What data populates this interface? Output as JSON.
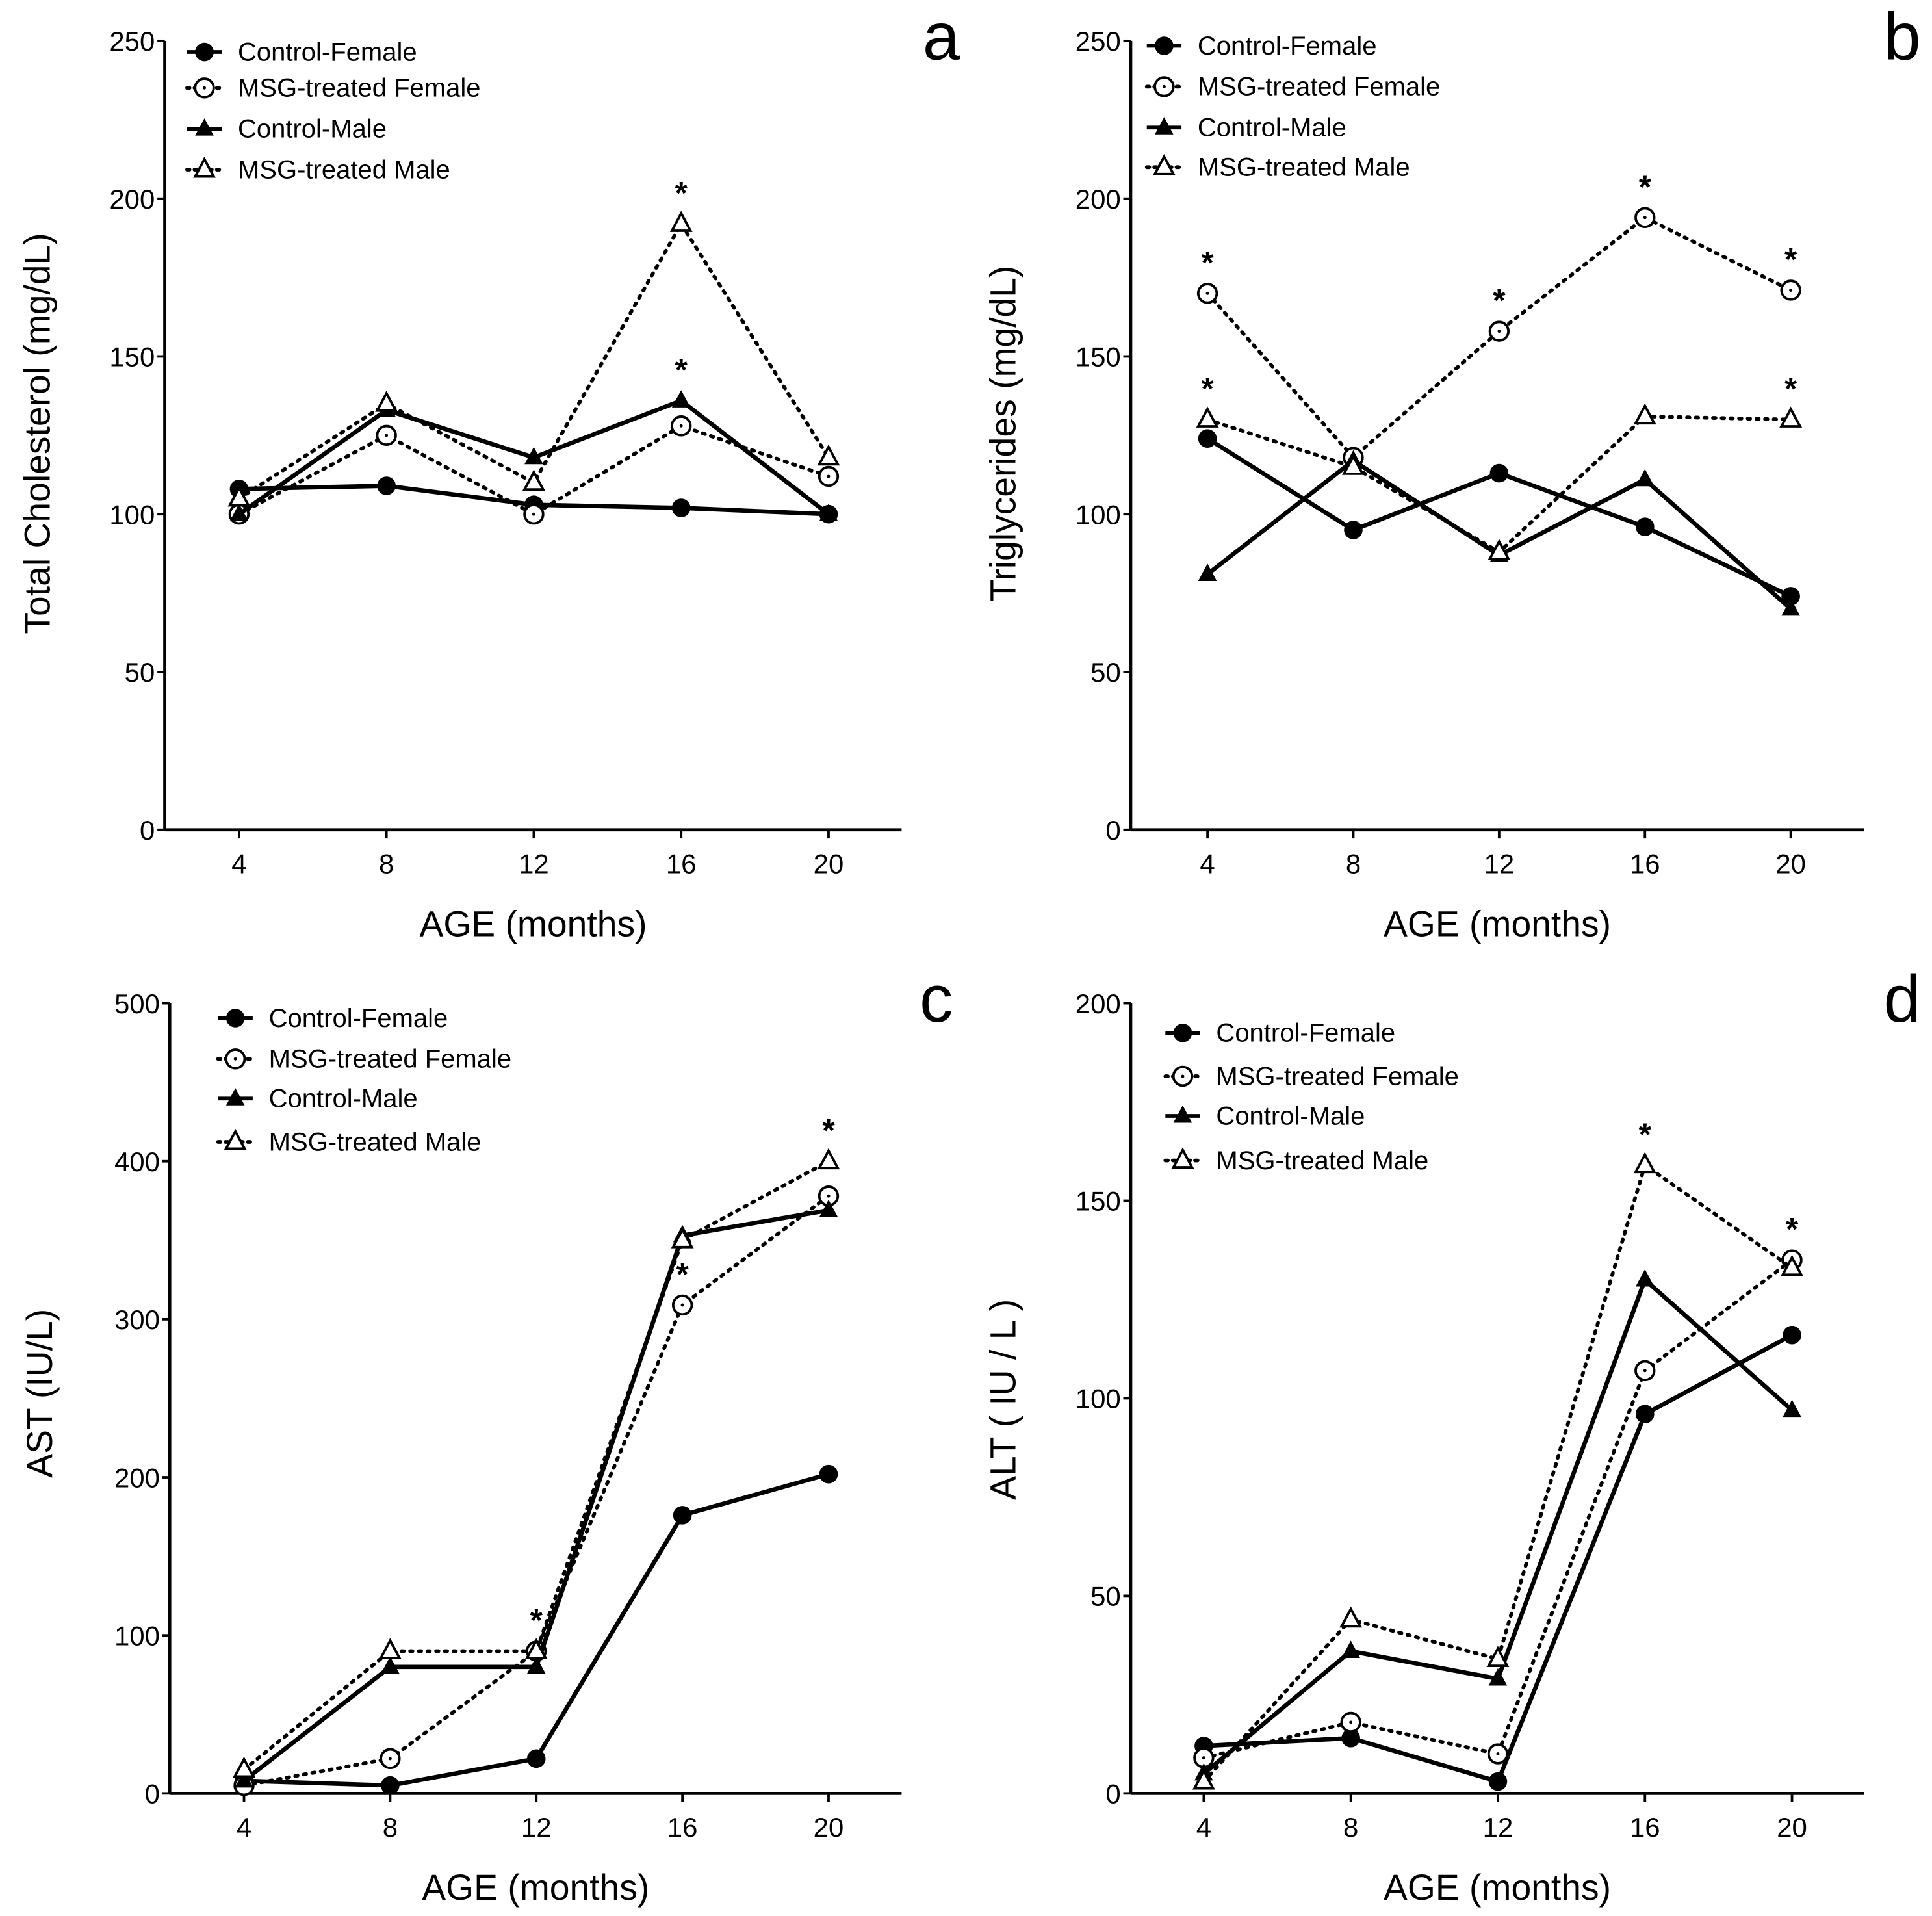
{
  "chart_data": [
    {
      "type": "line",
      "panel_label": "a",
      "xlabel": "AGE (months)",
      "ylabel": "Total Cholesterol (mg/dL)",
      "x": [
        4,
        8,
        12,
        16,
        20
      ],
      "ylim": [
        0,
        250
      ],
      "yticks": [
        0,
        50,
        100,
        150,
        200,
        250
      ],
      "legend_position": "top-left",
      "series": [
        {
          "name": "Control-Female",
          "values": [
            108,
            109,
            103,
            102,
            100
          ]
        },
        {
          "name": "MSG-treated Female",
          "values": [
            100,
            125,
            100,
            128,
            112
          ]
        },
        {
          "name": "Control-Male",
          "values": [
            100,
            133,
            118,
            136,
            100
          ]
        },
        {
          "name": "MSG-treated Male",
          "values": [
            105,
            135,
            110,
            192,
            118
          ]
        }
      ],
      "annotations": [
        {
          "text": "*",
          "series": 3,
          "x": 16
        },
        {
          "text": "*",
          "series": 2,
          "x": 16
        }
      ]
    },
    {
      "type": "line",
      "panel_label": "b",
      "xlabel": "AGE (months)",
      "ylabel": "Triglycerides (mg/dL)",
      "x": [
        4,
        8,
        12,
        16,
        20
      ],
      "ylim": [
        0,
        250
      ],
      "yticks": [
        0,
        50,
        100,
        150,
        200,
        250
      ],
      "legend_position": "top-left",
      "series": [
        {
          "name": "Control-Female",
          "values": [
            124,
            95,
            113,
            96,
            74
          ]
        },
        {
          "name": "MSG-treated Female",
          "values": [
            170,
            118,
            158,
            194,
            171
          ]
        },
        {
          "name": "Control-Male",
          "values": [
            81,
            117,
            87,
            111,
            70
          ]
        },
        {
          "name": "MSG-treated Male",
          "values": [
            130,
            115,
            88,
            131,
            130
          ]
        }
      ],
      "annotations": [
        {
          "text": "*",
          "series": 1,
          "x": 4
        },
        {
          "text": "*",
          "series": 1,
          "x": 12
        },
        {
          "text": "*",
          "series": 1,
          "x": 16
        },
        {
          "text": "*",
          "series": 1,
          "x": 20
        },
        {
          "text": "*",
          "series": 3,
          "x": 4
        },
        {
          "text": "*",
          "series": 3,
          "x": 20
        }
      ]
    },
    {
      "type": "line",
      "panel_label": "c",
      "xlabel": "AGE (months)",
      "ylabel": "AST (IU/L)",
      "x": [
        4,
        8,
        12,
        16,
        20
      ],
      "ylim": [
        0,
        500
      ],
      "yticks": [
        0,
        100,
        200,
        300,
        400,
        500
      ],
      "legend_position": "top-left",
      "series": [
        {
          "name": "Control-Female",
          "values": [
            8,
            5,
            22,
            176,
            202
          ]
        },
        {
          "name": "MSG-treated Female",
          "values": [
            5,
            22,
            90,
            309,
            378
          ]
        },
        {
          "name": "Control-Male",
          "values": [
            8,
            80,
            80,
            353,
            369
          ]
        },
        {
          "name": "MSG-treated Male",
          "values": [
            15,
            90,
            90,
            350,
            400
          ]
        }
      ],
      "annotations": [
        {
          "text": "*",
          "series": 1,
          "x": 12
        },
        {
          "text": "*",
          "series": 1,
          "x": 16
        },
        {
          "text": "*",
          "series": 3,
          "x": 20
        }
      ]
    },
    {
      "type": "line",
      "panel_label": "d",
      "xlabel": "AGE (months)",
      "ylabel": "ALT ( IU / L )",
      "x": [
        4,
        8,
        12,
        16,
        20
      ],
      "ylim": [
        0,
        200
      ],
      "yticks": [
        0,
        50,
        100,
        150,
        200
      ],
      "legend_position": "top-left",
      "series": [
        {
          "name": "Control-Female",
          "values": [
            12,
            14,
            3,
            96,
            116
          ]
        },
        {
          "name": "MSG-treated Female",
          "values": [
            9,
            18,
            10,
            107,
            135
          ]
        },
        {
          "name": "Control-Male",
          "values": [
            5,
            36,
            29,
            130,
            97
          ]
        },
        {
          "name": "MSG-treated Male",
          "values": [
            3,
            44,
            34,
            159,
            133
          ]
        }
      ],
      "annotations": [
        {
          "text": "*",
          "series": 3,
          "x": 16
        },
        {
          "text": "*",
          "series": 1,
          "x": 20
        }
      ]
    }
  ]
}
